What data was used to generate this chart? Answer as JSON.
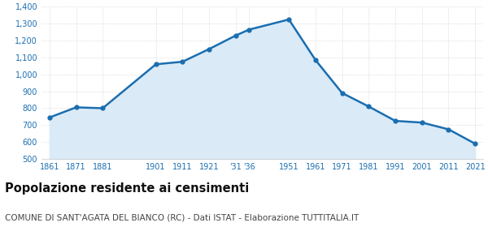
{
  "years": [
    1861,
    1871,
    1881,
    1901,
    1911,
    1921,
    1931,
    1936,
    1951,
    1961,
    1971,
    1981,
    1991,
    2001,
    2011,
    2021
  ],
  "x_labels": [
    "1861",
    "1871",
    "1881",
    "1901",
    "1911",
    "1921",
    "'31",
    "'36",
    "1951",
    "1961",
    "1971",
    "1981",
    "1991",
    "2001",
    "2011",
    "2021"
  ],
  "population": [
    745,
    805,
    800,
    1060,
    1075,
    1150,
    1230,
    1265,
    1325,
    1085,
    890,
    810,
    725,
    715,
    675,
    590
  ],
  "line_color": "#1a6eb0",
  "fill_color": "#daeaf7",
  "marker": "o",
  "marker_size": 3.5,
  "line_width": 1.8,
  "ylim": [
    500,
    1400
  ],
  "yticks": [
    500,
    600,
    700,
    800,
    900,
    1000,
    1100,
    1200,
    1300,
    1400
  ],
  "ytick_labels": [
    "500",
    "600",
    "700",
    "800",
    "900",
    "1,000",
    "1,100",
    "1,200",
    "1,300",
    "1,400"
  ],
  "title": "Popolazione residente ai censimenti",
  "subtitle": "COMUNE DI SANT'AGATA DEL BIANCO (RC) - Dati ISTAT - Elaborazione TUTTITALIA.IT",
  "title_fontsize": 10.5,
  "subtitle_fontsize": 7.5,
  "title_color": "#111111",
  "subtitle_color": "#444444",
  "axis_label_color": "#1a6eb0",
  "tick_color": "#1a6eb0",
  "grid_color": "#c8c8c8",
  "background_color": "#ffffff"
}
